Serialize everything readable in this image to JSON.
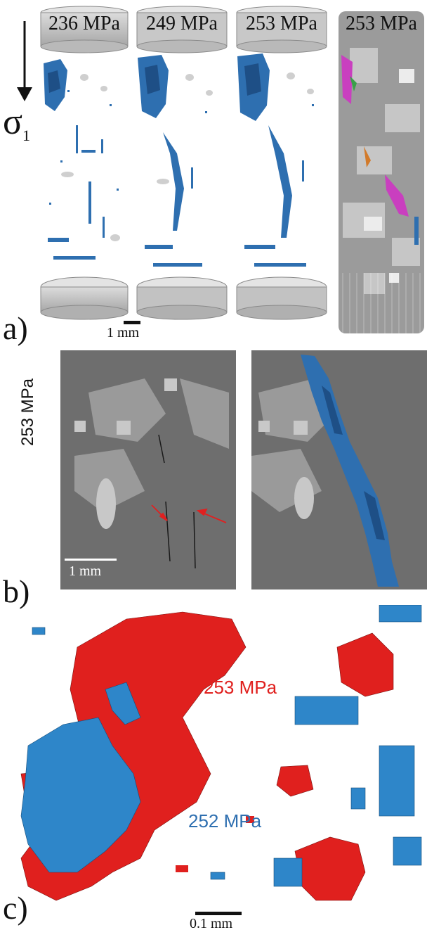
{
  "panel_a": {
    "stress_direction_symbol": "σ",
    "stress_direction_subscript": "1",
    "columns": [
      {
        "stress_label": "236 MPa"
      },
      {
        "stress_label": "249 MPa"
      },
      {
        "stress_label": "253 MPa"
      },
      {
        "stress_label": "253 MPa"
      }
    ],
    "panel_letter": "a)",
    "scale_bar_label": "1 mm"
  },
  "panel_b": {
    "stress_label": "253 MPa",
    "panel_letter": "b)",
    "scale_bar_label": "1 mm"
  },
  "panel_c": {
    "label_red": "253 MPa",
    "label_blue": "252 MPa",
    "panel_letter": "c)",
    "scale_bar_label": "0.1 mm"
  },
  "colors": {
    "fracture_blue": "#2e6fb0",
    "fracture_red": "#e0201e",
    "grain_gray": "#b9b9b9",
    "arrow_red": "#e02020"
  }
}
